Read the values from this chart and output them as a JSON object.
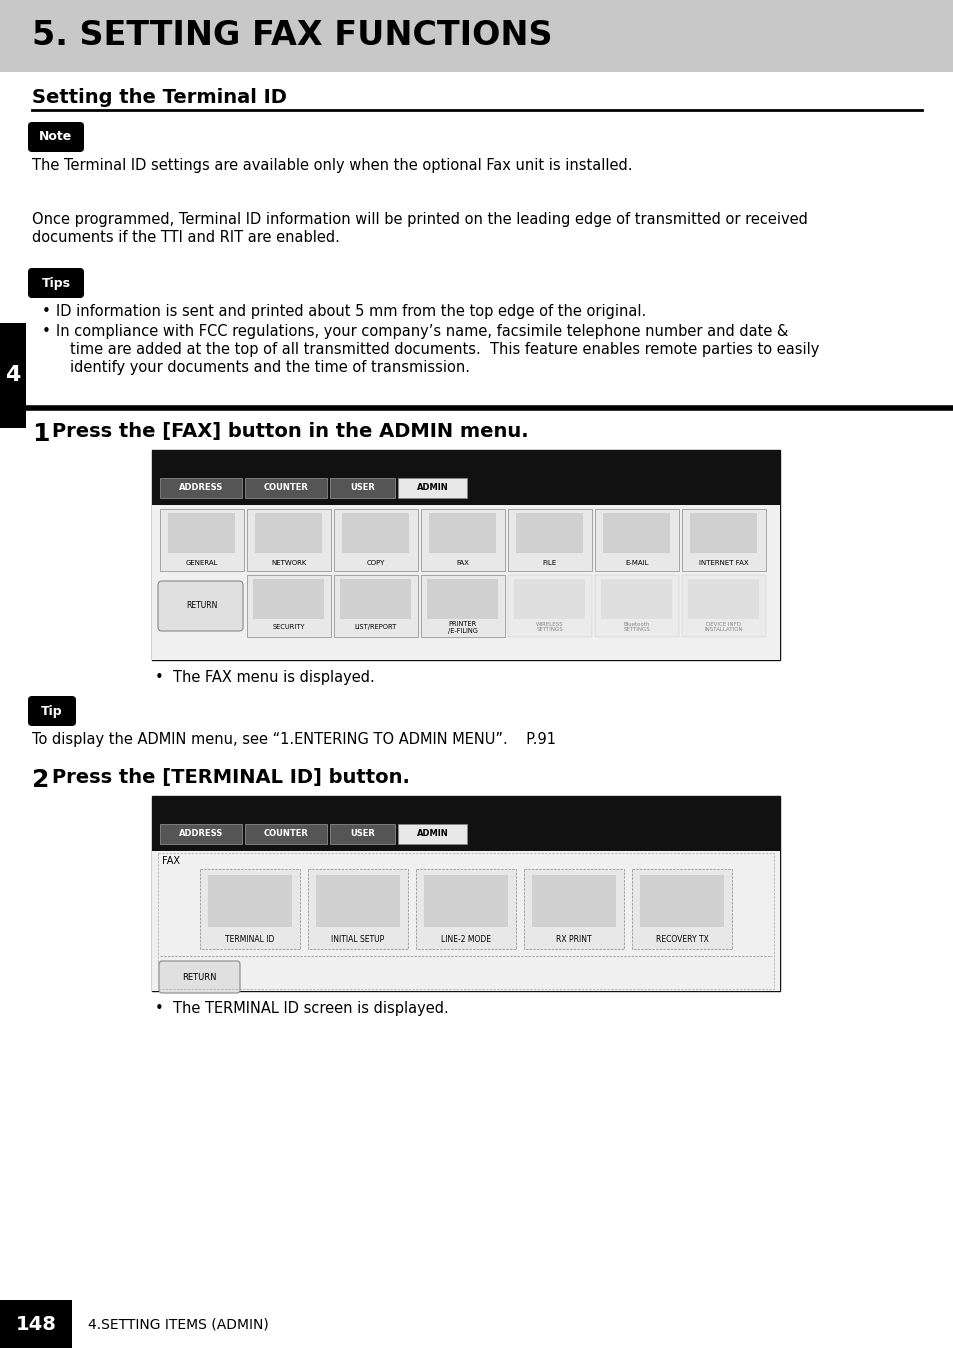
{
  "title": "5. SETTING FAX FUNCTIONS",
  "title_bg": "#c8c8c8",
  "section_title": "Setting the Terminal ID",
  "page_bg": "#ffffff",
  "note_badge": "Note",
  "note_text": "The Terminal ID settings are available only when the optional Fax unit is installed.",
  "para1_line1": "Once programmed, Terminal ID information will be printed on the leading edge of transmitted or received",
  "para1_line2": "documents if the TTI and RIT are enabled.",
  "tips_badge": "Tips",
  "tip_bullet1": "ID information is sent and printed about 5 mm from the top edge of the original.",
  "tip_bullet2_line1": "In compliance with FCC regulations, your company’s name, facsimile telephone number and date &",
  "tip_bullet2_line2": "time are added at the top of all transmitted documents.  This feature enables remote parties to easily",
  "tip_bullet2_line3": "identify your documents and the time of transmission.",
  "step1_num": "1",
  "step1_title": "Press the [FAX] button in the ADMIN menu.",
  "step1_caption": "•  The FAX menu is displayed.",
  "tip_badge": "Tip",
  "tip_text": "To display the ADMIN menu, see “1.ENTERING TO ADMIN MENU”.    P.91",
  "step2_num": "2",
  "step2_title": "Press the [TERMINAL ID] button.",
  "step2_caption": "•  The TERMINAL ID screen is displayed.",
  "page_number": "148",
  "footer_text": "4.SETTING ITEMS (ADMIN)",
  "sidebar_number": "4",
  "tab_labels": [
    "ADDRESS",
    "COUNTER",
    "USER",
    "ADMIN"
  ],
  "icon_row1": [
    "GENERAL",
    "NETWORK",
    "COPY",
    "FAX",
    "FILE",
    "E-MAIL",
    "INTERNET FAX"
  ],
  "icon_row2": [
    "RETURN",
    "SECURITY",
    "LIST/REPORT",
    "PRINTER\n/E-FILING",
    "",
    "",
    ""
  ],
  "icon_row_fax": [
    "TERMINAL ID",
    "INITIAL SETUP",
    "LINE-2 MODE",
    "RX PRINT",
    "RECOVERY TX"
  ]
}
